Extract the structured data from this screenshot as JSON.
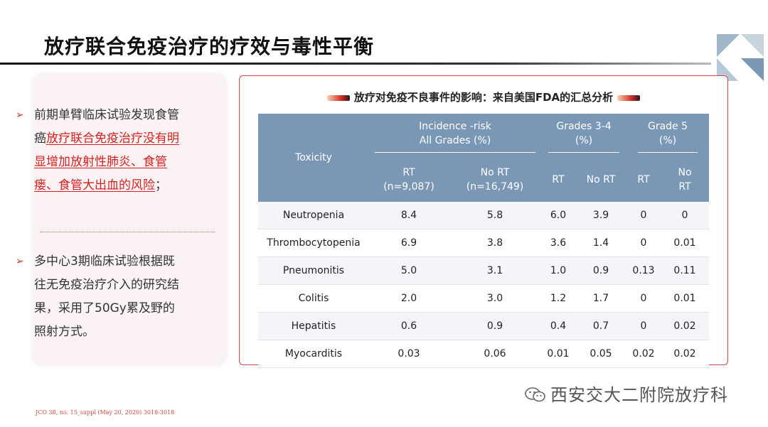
{
  "title": "放疗联合免疫治疗的疗效与毒性平衡",
  "left_panel": {
    "bullet1": {
      "text_before": "前期单臂临床试验发现食管癌",
      "text_highlight": "放疗联合免疫治疗没有明显增加放射性肺炎、食管瘘、食管大出血的风险",
      "text_after": "；"
    },
    "bullet2": {
      "text": "多中心3期临床试验根据既往无免疫治疗介入的研究结果，采用了50Gy累及野的照射方式。"
    }
  },
  "table": {
    "caption": "放疗对免疫不良事件的影响：来自美国FDA的汇总分析",
    "headers": {
      "toxicity": "Toxicity",
      "incidence_l1": "Incidence -risk",
      "incidence_l2": "All Grades (%)",
      "g34_l1": "Grades 3-4",
      "g34_l2": "(%)",
      "g5_l1": "Grade 5",
      "g5_l2": "(%)",
      "rt_l1": "RT",
      "rt_l2": "(n=9,087)",
      "nort_l1": "No RT",
      "nort_l2": "(n=16,749)",
      "rt": "RT",
      "nort": "No RT",
      "g5_rt": "RT",
      "g5_nort_l1": "No",
      "g5_nort_l2": "RT"
    },
    "rows": [
      {
        "name": "Neutropenia",
        "all_rt": "8.4",
        "all_nort": "5.8",
        "g34_rt": "6.0",
        "g34_nort": "3.9",
        "g5_rt": "0",
        "g5_nort": "0"
      },
      {
        "name": "Thrombocytopenia",
        "all_rt": "6.9",
        "all_nort": "3.8",
        "g34_rt": "3.6",
        "g34_nort": "1.4",
        "g5_rt": "0",
        "g5_nort": "0.01"
      },
      {
        "name": "Pneumonitis",
        "all_rt": "5.0",
        "all_nort": "3.1",
        "g34_rt": "1.0",
        "g34_nort": "0.9",
        "g5_rt": "0.13",
        "g5_nort": "0.11"
      },
      {
        "name": "Colitis",
        "all_rt": "2.0",
        "all_nort": "3.0",
        "g34_rt": "1.2",
        "g34_nort": "1.7",
        "g5_rt": "0",
        "g5_nort": "0.01"
      },
      {
        "name": "Hepatitis",
        "all_rt": "0.6",
        "all_nort": "0.9",
        "g34_rt": "0.4",
        "g34_nort": "0.7",
        "g5_rt": "0",
        "g5_nort": "0.02"
      },
      {
        "name": "Myocarditis",
        "all_rt": "0.03",
        "all_nort": "0.06",
        "g34_rt": "0.01",
        "g34_nort": "0.05",
        "g5_rt": "0.02",
        "g5_nort": "0.02"
      }
    ]
  },
  "footer_citation": "JCO 38, no. 15_suppl (May 20, 2020) 3018-3018",
  "watermark": "西安交大二附院放疗科",
  "colors": {
    "accent_red": "#d64545",
    "header_blue": "#7a98b6",
    "highlight_red": "#d61f1f"
  },
  "icons": {
    "bullet": "arrow-right-icon",
    "watermark": "wechat-icon"
  }
}
